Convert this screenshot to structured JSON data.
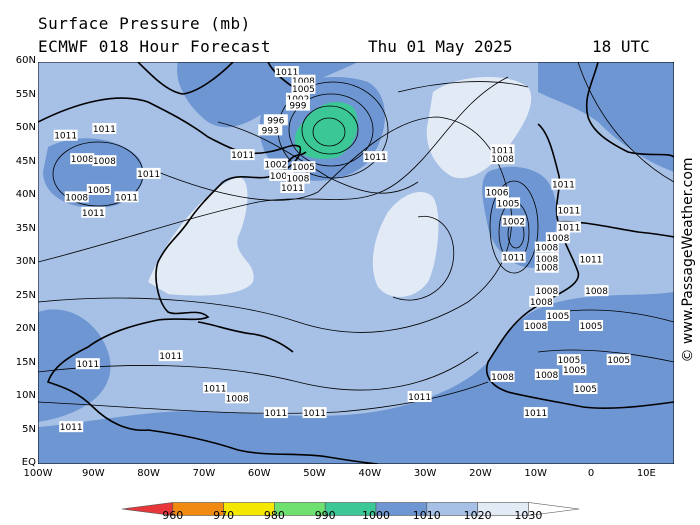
{
  "header": {
    "title_line1": "Surface Pressure (mb)",
    "title_line2": "ECMWF 018 Hour Forecast",
    "date": "Thu 01 May 2025",
    "time": "18 UTC"
  },
  "credit": "© www.PassageWeather.com",
  "axes": {
    "lat_labels": [
      "60N",
      "55N",
      "50N",
      "45N",
      "40N",
      "35N",
      "30N",
      "25N",
      "20N",
      "15N",
      "10N",
      "5N",
      "EQ"
    ],
    "lon_labels": [
      "100W",
      "90W",
      "80W",
      "70W",
      "60W",
      "50W",
      "40W",
      "30W",
      "20W",
      "10W",
      "0",
      "10E"
    ]
  },
  "legend": {
    "labels": [
      "960",
      "970",
      "980",
      "990",
      "1000",
      "1010",
      "1020",
      "1030"
    ],
    "colors": [
      "#e8373a",
      "#f08a10",
      "#f5e800",
      "#6ee070",
      "#3cc896",
      "#6e96d2",
      "#a6c0e6",
      "#e2eaf6",
      "#ffffff"
    ]
  },
  "colors": {
    "lt1010": "#6e96d2",
    "band1010_1020": "#a6c0e6",
    "band1020_1030": "#e2eaf6",
    "band990_1000": "#3cc896",
    "land": "#000000"
  },
  "isobar_labels": [
    {
      "text": "1011",
      "lon": -55,
      "lat": 58.5
    },
    {
      "text": "1008",
      "lon": -52,
      "lat": 57.2
    },
    {
      "text": "1005",
      "lon": -52,
      "lat": 56.0
    },
    {
      "text": "1002",
      "lon": -53,
      "lat": 54.5
    },
    {
      "text": "999",
      "lon": -53,
      "lat": 53.5
    },
    {
      "text": "996",
      "lon": -57,
      "lat": 51.3
    },
    {
      "text": "993",
      "lon": -58,
      "lat": 49.8
    },
    {
      "text": "1002",
      "lon": -57,
      "lat": 44.7
    },
    {
      "text": "1005",
      "lon": -52,
      "lat": 44.3
    },
    {
      "text": "1002",
      "lon": -56,
      "lat": 43.0
    },
    {
      "text": "1008",
      "lon": -53,
      "lat": 42.6
    },
    {
      "text": "1011",
      "lon": -54,
      "lat": 41.2
    },
    {
      "text": "1011",
      "lon": -63,
      "lat": 46.1
    },
    {
      "text": "1011",
      "lon": -39,
      "lat": 45.8
    },
    {
      "text": "1011",
      "lon": -95,
      "lat": 49.0
    },
    {
      "text": "1011",
      "lon": -88,
      "lat": 50.0
    },
    {
      "text": "1008",
      "lon": -92,
      "lat": 45.5
    },
    {
      "text": "1008",
      "lon": -88,
      "lat": 45.2
    },
    {
      "text": "1011",
      "lon": -80,
      "lat": 43.3
    },
    {
      "text": "1005",
      "lon": -89,
      "lat": 40.9
    },
    {
      "text": "1008",
      "lon": -93,
      "lat": 39.8
    },
    {
      "text": "1011",
      "lon": -84,
      "lat": 39.8
    },
    {
      "text": "1011",
      "lon": -90,
      "lat": 37.5
    },
    {
      "text": "1011",
      "lon": -16,
      "lat": 46.8
    },
    {
      "text": "1008",
      "lon": -16,
      "lat": 45.5
    },
    {
      "text": "1006",
      "lon": -17,
      "lat": 40.5
    },
    {
      "text": "1005",
      "lon": -15,
      "lat": 38.9
    },
    {
      "text": "1002",
      "lon": -14,
      "lat": 36.2
    },
    {
      "text": "1011",
      "lon": -14,
      "lat": 30.8
    },
    {
      "text": "1011",
      "lon": -5,
      "lat": 41.7
    },
    {
      "text": "1011",
      "lon": -4,
      "lat": 37.8
    },
    {
      "text": "1011",
      "lon": -4,
      "lat": 35.3
    },
    {
      "text": "1008",
      "lon": -6,
      "lat": 33.7
    },
    {
      "text": "1008",
      "lon": -8,
      "lat": 32.3
    },
    {
      "text": "1008",
      "lon": -8,
      "lat": 30.6
    },
    {
      "text": "1011",
      "lon": 0,
      "lat": 30.5
    },
    {
      "text": "1008",
      "lon": -8,
      "lat": 29.3
    },
    {
      "text": "1008",
      "lon": -8,
      "lat": 25.8
    },
    {
      "text": "1008",
      "lon": -9,
      "lat": 24.2
    },
    {
      "text": "1008",
      "lon": 1,
      "lat": 25.8
    },
    {
      "text": "1005",
      "lon": -6,
      "lat": 22.1
    },
    {
      "text": "1005",
      "lon": 0,
      "lat": 20.6
    },
    {
      "text": "1008",
      "lon": -10,
      "lat": 20.6
    },
    {
      "text": "1005",
      "lon": -4,
      "lat": 15.5
    },
    {
      "text": "1005",
      "lon": 5,
      "lat": 15.5
    },
    {
      "text": "1008",
      "lon": -16,
      "lat": 13.0
    },
    {
      "text": "1008",
      "lon": -8,
      "lat": 13.3
    },
    {
      "text": "1005",
      "lon": -3,
      "lat": 14.0
    },
    {
      "text": "1011",
      "lon": -31,
      "lat": 10.0
    },
    {
      "text": "1011",
      "lon": -10,
      "lat": 7.6
    },
    {
      "text": "1011",
      "lon": -50,
      "lat": 7.6
    },
    {
      "text": "1011",
      "lon": -57,
      "lat": 7.6
    },
    {
      "text": "1011",
      "lon": -68,
      "lat": 11.3
    },
    {
      "text": "1008",
      "lon": -64,
      "lat": 9.8
    },
    {
      "text": "1011",
      "lon": -76,
      "lat": 16.1
    },
    {
      "text": "1011",
      "lon": -91,
      "lat": 14.9
    },
    {
      "text": "1011",
      "lon": -94,
      "lat": 5.5
    },
    {
      "text": "1005",
      "lon": -1,
      "lat": 11.2
    }
  ]
}
